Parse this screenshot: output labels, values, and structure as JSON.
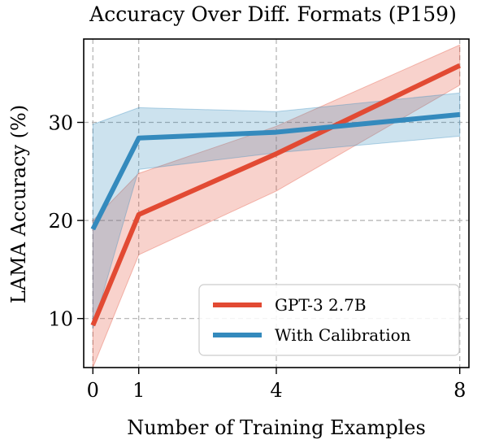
{
  "chart_data": {
    "type": "line",
    "title": "Accuracy Over Diff. Formats (P159)",
    "xlabel": "Number of Training Examples",
    "ylabel": "LAMA Accuracy (%)",
    "x": [
      0,
      1,
      4,
      8
    ],
    "x_ticks": [
      0,
      1,
      4,
      8
    ],
    "y_ticks": [
      10,
      20,
      30
    ],
    "xlim": [
      -0.2,
      8.2
    ],
    "ylim": [
      5,
      38.5
    ],
    "grid": true,
    "legend_position": "lower-right",
    "series": [
      {
        "name": "GPT-3 2.7B",
        "color": "#e24a33",
        "values": [
          9.3,
          20.6,
          26.8,
          35.8
        ],
        "band_low": [
          2.0,
          16.5,
          23.0,
          33.8
        ],
        "band_high": [
          20.0,
          24.8,
          29.6,
          37.9
        ]
      },
      {
        "name": "With Calibration",
        "color": "#348abd",
        "values": [
          19.1,
          28.4,
          29.0,
          30.8
        ],
        "band_low": [
          9.0,
          25.2,
          26.9,
          28.6
        ],
        "band_high": [
          29.8,
          31.5,
          31.1,
          33.0
        ]
      }
    ]
  }
}
